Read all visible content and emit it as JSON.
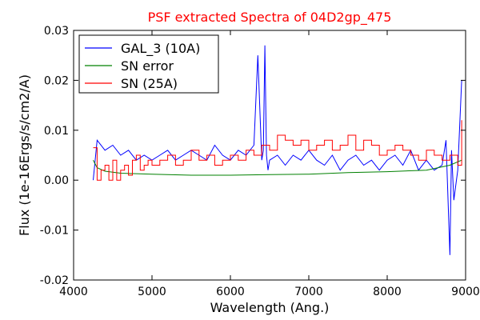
{
  "chart_data": {
    "type": "line",
    "title": "PSF extracted Spectra of 04D2gp_475",
    "xlabel": "Wavelength (Ang.)",
    "ylabel": "Flux (1e-16Ergs/s/cm2/A)",
    "xlim": [
      4000,
      9000
    ],
    "ylim": [
      -0.02,
      0.03
    ],
    "xticks": [
      4000,
      5000,
      6000,
      7000,
      8000,
      9000
    ],
    "xtick_labels": [
      "4000",
      "5000",
      "6000",
      "7000",
      "8000",
      "9000"
    ],
    "yticks": [
      -0.02,
      -0.01,
      0.0,
      0.01,
      0.02,
      0.03
    ],
    "ytick_labels": [
      "-0.02",
      "-0.01",
      "0.00",
      "0.01",
      "0.02",
      "0.03"
    ],
    "grid": false,
    "legend_position": "top-left",
    "series": [
      {
        "name": "GAL_3 (10A)",
        "color": "#0000ff",
        "style": "line",
        "x": [
          4250,
          4300,
          4400,
          4500,
          4600,
          4700,
          4800,
          4900,
          5000,
          5100,
          5200,
          5300,
          5400,
          5500,
          5600,
          5700,
          5800,
          5900,
          6000,
          6100,
          6200,
          6300,
          6350,
          6400,
          6420,
          6440,
          6460,
          6480,
          6500,
          6600,
          6700,
          6800,
          6900,
          7000,
          7100,
          7200,
          7300,
          7400,
          7500,
          7600,
          7700,
          7800,
          7900,
          8000,
          8100,
          8200,
          8300,
          8400,
          8500,
          8600,
          8700,
          8750,
          8800,
          8820,
          8850,
          8900,
          8950
        ],
        "y": [
          0.0,
          0.008,
          0.006,
          0.007,
          0.005,
          0.006,
          0.004,
          0.005,
          0.004,
          0.005,
          0.006,
          0.004,
          0.005,
          0.006,
          0.005,
          0.004,
          0.007,
          0.005,
          0.004,
          0.006,
          0.005,
          0.007,
          0.025,
          0.004,
          0.006,
          0.027,
          0.005,
          0.002,
          0.004,
          0.005,
          0.003,
          0.005,
          0.004,
          0.006,
          0.004,
          0.003,
          0.005,
          0.002,
          0.004,
          0.005,
          0.003,
          0.004,
          0.002,
          0.004,
          0.005,
          0.003,
          0.006,
          0.002,
          0.004,
          0.002,
          0.003,
          0.008,
          -0.015,
          0.006,
          -0.004,
          0.002,
          0.02
        ]
      },
      {
        "name": "SN error",
        "color": "#008000",
        "style": "line",
        "x": [
          4250,
          4300,
          4400,
          4500,
          4600,
          4800,
          5000,
          5200,
          5500,
          6000,
          6500,
          7000,
          7500,
          8000,
          8500,
          8800,
          8950
        ],
        "y": [
          0.004,
          0.0025,
          0.0018,
          0.0016,
          0.0014,
          0.0013,
          0.0012,
          0.0011,
          0.001,
          0.001,
          0.0011,
          0.0012,
          0.0015,
          0.0017,
          0.002,
          0.003,
          0.004
        ]
      },
      {
        "name": "SN (25A)",
        "color": "#ff0000",
        "style": "step",
        "x": [
          4250,
          4300,
          4350,
          4400,
          4450,
          4500,
          4550,
          4600,
          4650,
          4700,
          4750,
          4800,
          4850,
          4900,
          4950,
          5000,
          5100,
          5200,
          5300,
          5400,
          5500,
          5600,
          5700,
          5800,
          5900,
          6000,
          6100,
          6200,
          6300,
          6400,
          6500,
          6600,
          6700,
          6800,
          6900,
          7000,
          7100,
          7200,
          7300,
          7400,
          7500,
          7600,
          7700,
          7800,
          7900,
          8000,
          8100,
          8200,
          8300,
          8400,
          8500,
          8600,
          8700,
          8800,
          8900,
          8950
        ],
        "y": [
          0.0065,
          0.0,
          0.002,
          0.003,
          0.0,
          0.004,
          0.0,
          0.002,
          0.003,
          0.001,
          0.004,
          0.005,
          0.002,
          0.003,
          0.004,
          0.003,
          0.004,
          0.005,
          0.003,
          0.004,
          0.006,
          0.004,
          0.005,
          0.003,
          0.004,
          0.005,
          0.004,
          0.006,
          0.005,
          0.007,
          0.006,
          0.009,
          0.008,
          0.007,
          0.008,
          0.006,
          0.007,
          0.008,
          0.006,
          0.007,
          0.009,
          0.006,
          0.008,
          0.007,
          0.005,
          0.006,
          0.007,
          0.006,
          0.005,
          0.004,
          0.006,
          0.005,
          0.004,
          0.005,
          0.003,
          0.012
        ]
      }
    ]
  }
}
